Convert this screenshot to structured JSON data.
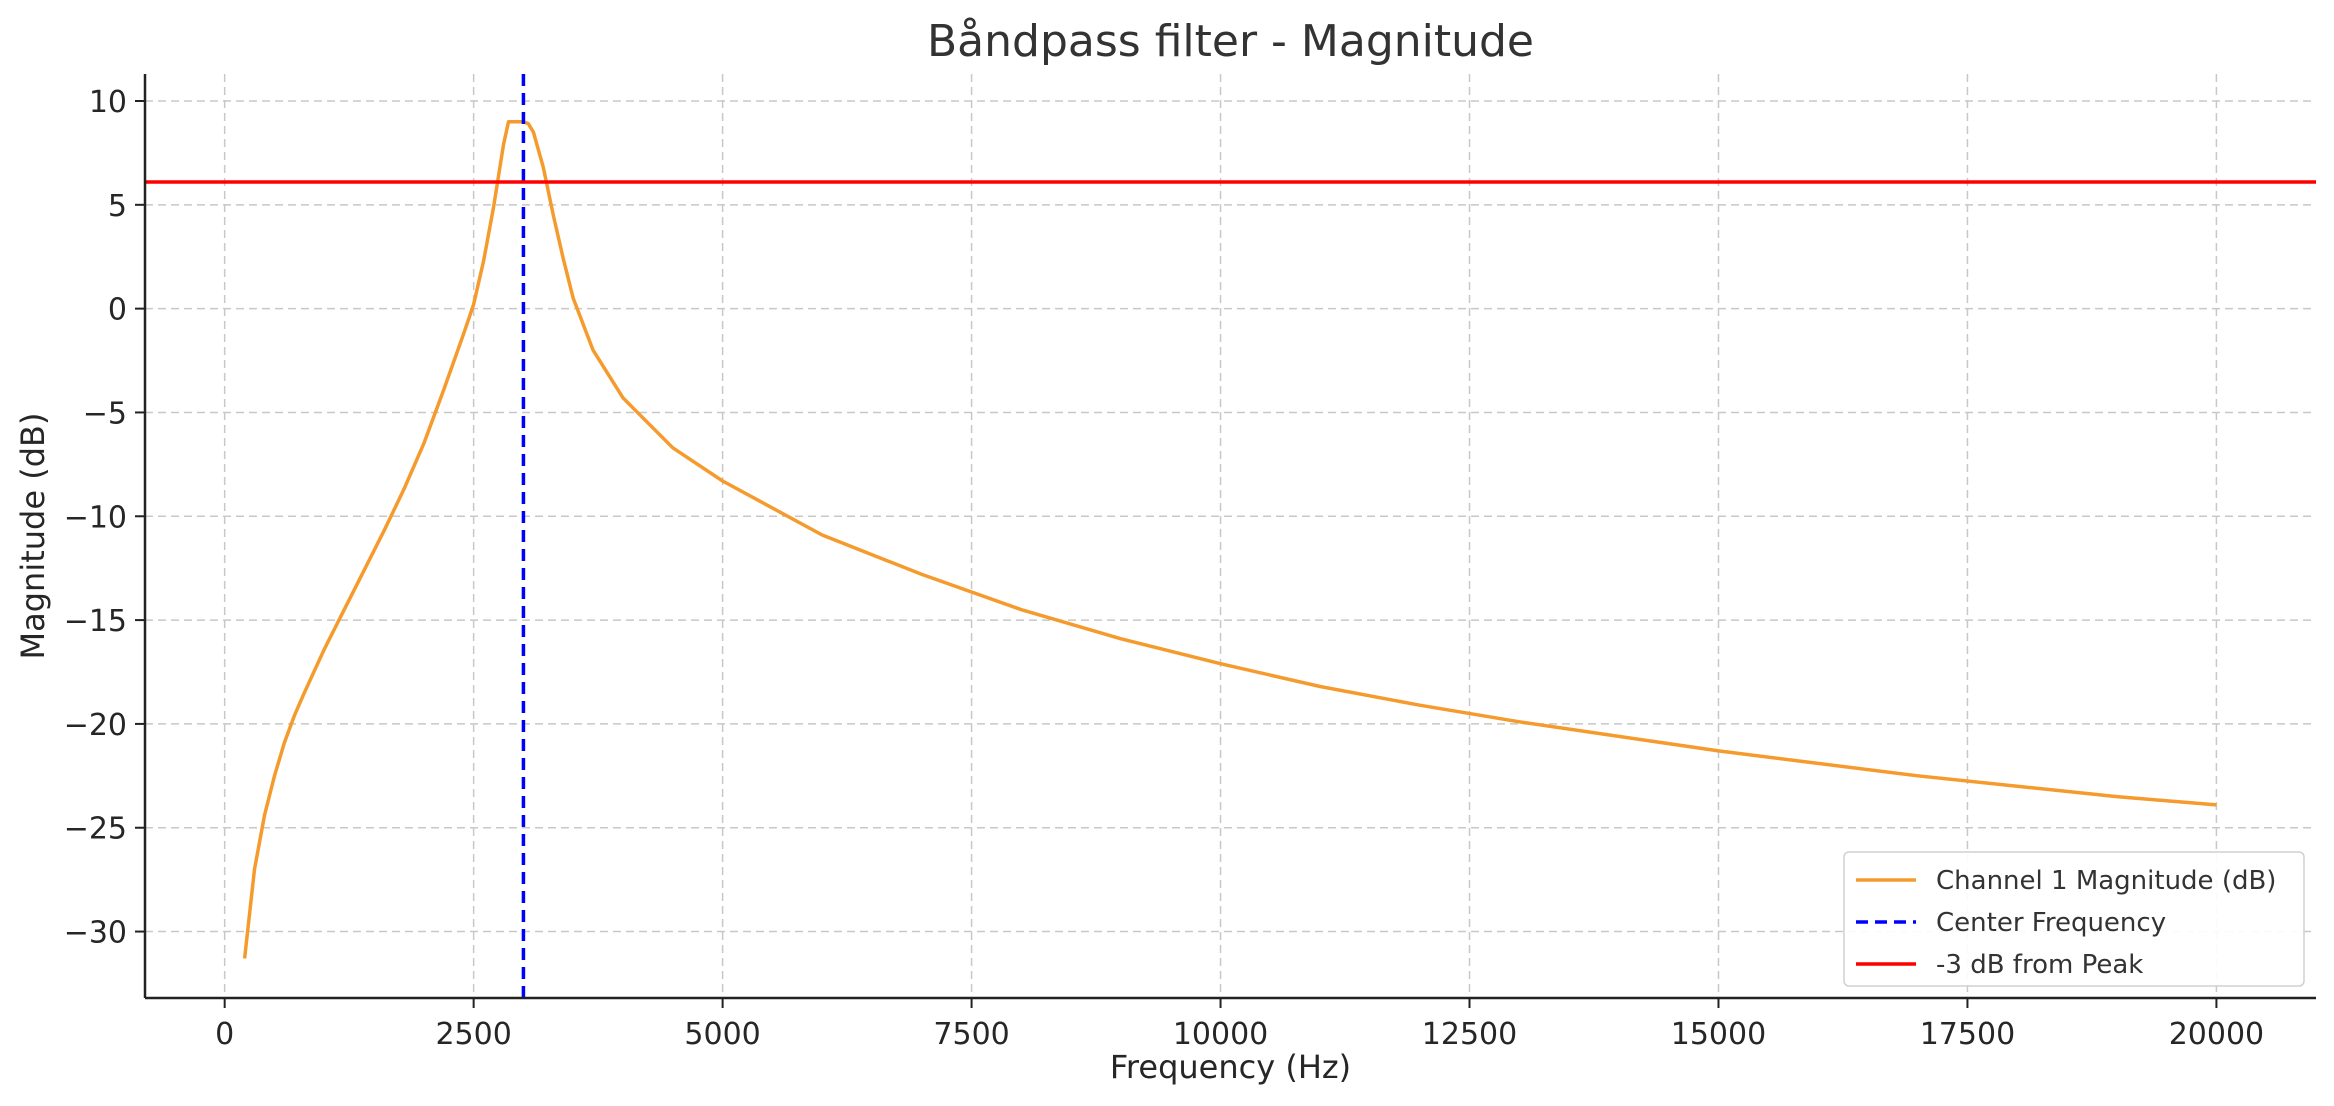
{
  "chart_data": {
    "type": "line",
    "title": "Båndpass filter - Magnitude",
    "xlabel": "Frequency (Hz)",
    "ylabel": "Magnitude (dB)",
    "xlim": [
      -800,
      21000
    ],
    "ylim": [
      -33.2,
      11.3
    ],
    "xticks": [
      0,
      2500,
      5000,
      7500,
      10000,
      12500,
      15000,
      17500,
      20000
    ],
    "xtick_labels": [
      "0",
      "2500",
      "5000",
      "7500",
      "10000",
      "12500",
      "15000",
      "17500",
      "20000"
    ],
    "yticks": [
      10,
      5,
      0,
      -5,
      -10,
      -15,
      -20,
      -25,
      -30
    ],
    "ytick_labels": [
      "10",
      "5",
      "0",
      "−5",
      "−10",
      "−15",
      "−20",
      "−25",
      "−30"
    ],
    "grid": true,
    "legend_position": "lower-right",
    "series": [
      {
        "name": "Channel 1 Magnitude (dB)",
        "color": "#f59b2e",
        "style": "solid",
        "x": [
          200,
          300,
          400,
          500,
          600,
          700,
          800,
          1000,
          1200,
          1400,
          1600,
          1800,
          2000,
          2200,
          2400,
          2500,
          2600,
          2700,
          2800,
          2850,
          2900,
          2950,
          3000,
          3050,
          3100,
          3200,
          3300,
          3400,
          3500,
          3700,
          4000,
          4500,
          5000,
          6000,
          7000,
          8000,
          9000,
          10000,
          11000,
          12000,
          13000,
          14000,
          15000,
          16000,
          17000,
          18000,
          19000,
          20000
        ],
        "y": [
          -31.3,
          -27.0,
          -24.4,
          -22.5,
          -20.9,
          -19.6,
          -18.5,
          -16.4,
          -14.5,
          -12.6,
          -10.7,
          -8.7,
          -6.5,
          -3.9,
          -1.2,
          0.2,
          2.3,
          4.9,
          7.9,
          9.0,
          9.0,
          9.0,
          9.0,
          8.9,
          8.5,
          6.8,
          4.5,
          2.4,
          0.5,
          -2.0,
          -4.3,
          -6.7,
          -8.3,
          -10.9,
          -12.8,
          -14.5,
          -15.9,
          -17.1,
          -18.2,
          -19.1,
          -19.9,
          -20.6,
          -21.3,
          -21.9,
          -22.5,
          -23.0,
          -23.5,
          -23.9
        ]
      },
      {
        "name": "Center Frequency",
        "color": "#0000ff",
        "style": "dashed",
        "orientation": "vertical",
        "x": 3000
      },
      {
        "name": "-3 dB from Peak",
        "color": "#ff0000",
        "style": "solid",
        "orientation": "horizontal",
        "y": 6.1
      }
    ]
  }
}
